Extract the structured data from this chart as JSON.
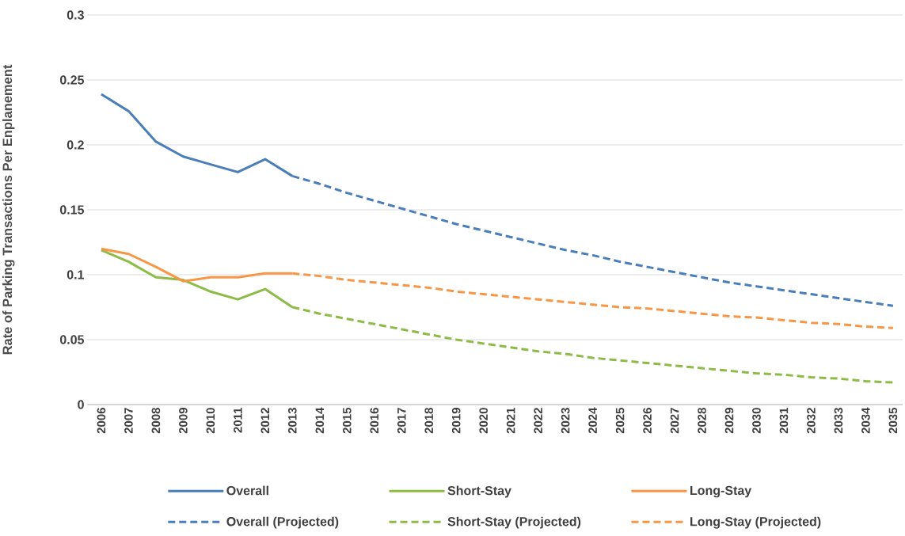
{
  "chart_data": {
    "type": "line",
    "ylabel": "Rate of Parking Transactions Per Enplanement",
    "categories": [
      "2006",
      "2007",
      "2008",
      "2009",
      "2010",
      "2011",
      "2012",
      "2013",
      "2014",
      "2015",
      "2016",
      "2017",
      "2018",
      "2019",
      "2020",
      "2021",
      "2022",
      "2023",
      "2024",
      "2025",
      "2026",
      "2027",
      "2028",
      "2029",
      "2030",
      "2031",
      "2032",
      "2033",
      "2034",
      "2035"
    ],
    "ylim": [
      0,
      0.3
    ],
    "yticks": [
      0,
      0.05,
      0.1,
      0.15,
      0.2,
      0.25,
      0.3
    ],
    "grid": "y",
    "legend": "bottom",
    "marker": "none",
    "series": [
      {
        "name": "Overall",
        "color": "#4a7ebb",
        "line_style": "solid",
        "values": [
          0.239,
          0.226,
          0.2025,
          0.191,
          0.185,
          0.179,
          0.189,
          0.176,
          null,
          null,
          null,
          null,
          null,
          null,
          null,
          null,
          null,
          null,
          null,
          null,
          null,
          null,
          null,
          null,
          null,
          null,
          null,
          null,
          null,
          null
        ]
      },
      {
        "name": "Short-Stay",
        "color": "#8cbb46",
        "line_style": "solid",
        "values": [
          0.119,
          0.11,
          0.098,
          0.096,
          0.087,
          0.081,
          0.089,
          0.075,
          null,
          null,
          null,
          null,
          null,
          null,
          null,
          null,
          null,
          null,
          null,
          null,
          null,
          null,
          null,
          null,
          null,
          null,
          null,
          null,
          null,
          null
        ]
      },
      {
        "name": "Long-Stay",
        "color": "#f79646",
        "line_style": "solid",
        "values": [
          0.12,
          0.116,
          0.106,
          0.095,
          0.098,
          0.098,
          0.101,
          0.101,
          null,
          null,
          null,
          null,
          null,
          null,
          null,
          null,
          null,
          null,
          null,
          null,
          null,
          null,
          null,
          null,
          null,
          null,
          null,
          null,
          null,
          null
        ]
      },
      {
        "name": "Overall (Projected)",
        "color": "#4a7ebb",
        "line_style": "dashed",
        "values": [
          null,
          null,
          null,
          null,
          null,
          null,
          null,
          0.176,
          0.17,
          0.163,
          0.157,
          0.151,
          0.145,
          0.139,
          0.134,
          0.129,
          0.124,
          0.119,
          0.115,
          0.11,
          0.106,
          0.102,
          0.098,
          0.094,
          0.091,
          0.088,
          0.085,
          0.082,
          0.079,
          0.076
        ]
      },
      {
        "name": "Short-Stay (Projected)",
        "color": "#8cbb46",
        "line_style": "dashed",
        "values": [
          null,
          null,
          null,
          null,
          null,
          null,
          null,
          0.075,
          0.07,
          0.066,
          0.062,
          0.058,
          0.054,
          0.05,
          0.047,
          0.044,
          0.041,
          0.039,
          0.036,
          0.034,
          0.032,
          0.03,
          0.028,
          0.026,
          0.024,
          0.023,
          0.021,
          0.02,
          0.018,
          0.017
        ]
      },
      {
        "name": "Long-Stay (Projected)",
        "color": "#f79646",
        "line_style": "dashed",
        "values": [
          null,
          null,
          null,
          null,
          null,
          null,
          null,
          0.101,
          0.099,
          0.096,
          0.094,
          0.092,
          0.09,
          0.087,
          0.085,
          0.083,
          0.081,
          0.079,
          0.077,
          0.075,
          0.074,
          0.072,
          0.07,
          0.068,
          0.067,
          0.065,
          0.063,
          0.062,
          0.06,
          0.059
        ]
      }
    ]
  }
}
